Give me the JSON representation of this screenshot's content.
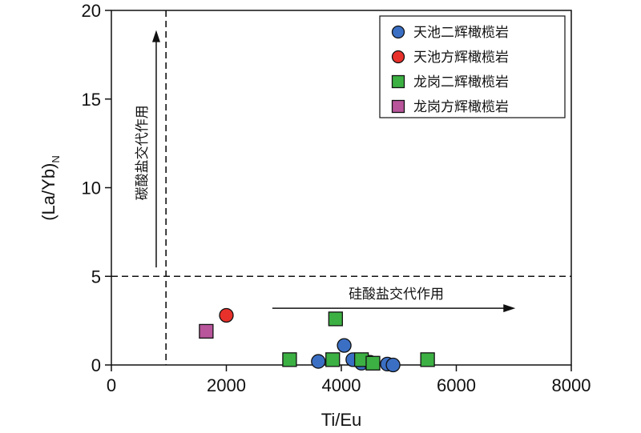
{
  "chart_data": {
    "type": "scatter",
    "xlabel": "Ti/Eu",
    "ylabel_main": "(La/Yb)",
    "ylabel_sub": "N",
    "xlim": [
      0,
      8000
    ],
    "ylim": [
      0,
      20
    ],
    "xticks": [
      0,
      2000,
      4000,
      6000,
      8000
    ],
    "yticks": [
      0,
      5,
      10,
      15,
      20
    ],
    "grid": false,
    "legend_position": "top-right",
    "reference_lines": [
      {
        "orientation": "vertical",
        "value": 950,
        "style": "dashed"
      },
      {
        "orientation": "horizontal",
        "value": 5,
        "style": "dashed"
      }
    ],
    "annotations": {
      "vertical_arrow": {
        "text": "碳酸盐交代作用",
        "x": 780,
        "from": 5.5,
        "to": 18.8
      },
      "horizontal_arrow": {
        "text": "硅酸盐交代作用",
        "y": 3.2,
        "from": 2800,
        "to": 7000
      }
    },
    "series": [
      {
        "name": "天池二辉橄榄岩",
        "marker": "circle",
        "color": "#3b6fc4",
        "points": [
          [
            3600,
            0.2
          ],
          [
            4050,
            1.1
          ],
          [
            4200,
            0.3
          ],
          [
            4350,
            0.1
          ],
          [
            4500,
            0.15
          ],
          [
            4800,
            0.05
          ],
          [
            4900,
            0.0
          ]
        ]
      },
      {
        "name": "天池方辉橄榄岩",
        "marker": "circle",
        "color": "#e8312b",
        "points": [
          [
            2000,
            2.8
          ]
        ]
      },
      {
        "name": "龙岗二辉橄榄岩",
        "marker": "square",
        "color": "#3cb043",
        "points": [
          [
            3100,
            0.3
          ],
          [
            3850,
            0.3
          ],
          [
            3900,
            2.6
          ],
          [
            4350,
            0.3
          ],
          [
            4550,
            0.1
          ],
          [
            5500,
            0.3
          ]
        ]
      },
      {
        "name": "龙岗方辉橄榄岩",
        "marker": "square",
        "color": "#b8559b",
        "points": [
          [
            1650,
            1.9
          ]
        ]
      }
    ]
  }
}
